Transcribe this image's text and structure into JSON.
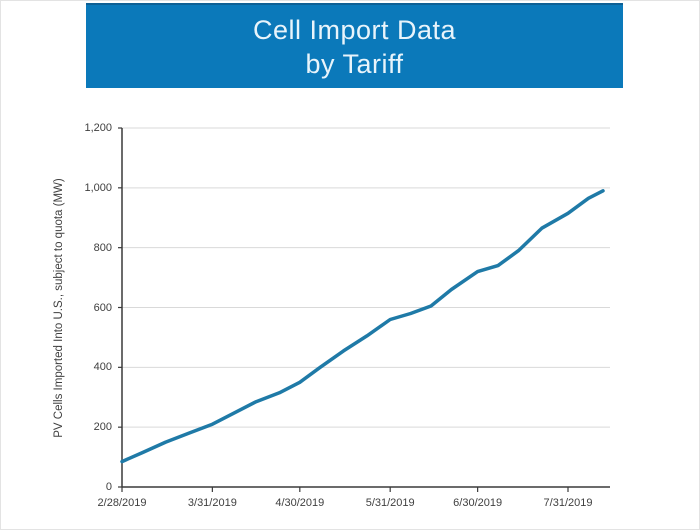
{
  "banner": {
    "title_line1": "Cell Import Data",
    "title_line2": "by Tariff"
  },
  "colors": {
    "banner_bg": "#0b79ba",
    "banner_text": "#e8f4fb",
    "line": "#1f7aa7",
    "axis_line": "#3a3a3a",
    "gridline": "#d9d9d9",
    "tick_text": "#404040"
  },
  "chart_data": {
    "type": "line",
    "title": "Cell Import Data by Tariff",
    "xlabel": "",
    "ylabel": "PV Cells Imported Into U.S., subject to quota (MW)",
    "ylim": [
      0,
      1200
    ],
    "y_tick_interval": 200,
    "y_tick_labels": [
      "0",
      "200",
      "400",
      "600",
      "800",
      "1,000",
      "1,200"
    ],
    "y_tick_values": [
      0,
      200,
      400,
      600,
      800,
      1000,
      1200
    ],
    "x_tick_labels": [
      "2/28/2019",
      "3/31/2019",
      "4/30/2019",
      "5/31/2019",
      "6/30/2019",
      "7/31/2019"
    ],
    "grid": "horizontal",
    "legend": "none",
    "series": [
      {
        "name": "PV cells imported, subject to quota (MW)",
        "points": [
          {
            "date": "2/28/2019",
            "mw": 85
          },
          {
            "date": "3/7/2019",
            "mw": 115
          },
          {
            "date": "3/15/2019",
            "mw": 150
          },
          {
            "date": "3/23/2019",
            "mw": 180
          },
          {
            "date": "3/31/2019",
            "mw": 210
          },
          {
            "date": "4/7/2019",
            "mw": 245
          },
          {
            "date": "4/15/2019",
            "mw": 285
          },
          {
            "date": "4/23/2019",
            "mw": 315
          },
          {
            "date": "4/30/2019",
            "mw": 350
          },
          {
            "date": "5/7/2019",
            "mw": 400
          },
          {
            "date": "5/15/2019",
            "mw": 455
          },
          {
            "date": "5/23/2019",
            "mw": 505
          },
          {
            "date": "5/31/2019",
            "mw": 560
          },
          {
            "date": "6/7/2019",
            "mw": 580
          },
          {
            "date": "6/14/2019",
            "mw": 605
          },
          {
            "date": "6/21/2019",
            "mw": 660
          },
          {
            "date": "6/30/2019",
            "mw": 720
          },
          {
            "date": "7/7/2019",
            "mw": 740
          },
          {
            "date": "7/14/2019",
            "mw": 790
          },
          {
            "date": "7/22/2019",
            "mw": 865
          },
          {
            "date": "7/31/2019",
            "mw": 915
          },
          {
            "date": "8/7/2019",
            "mw": 965
          },
          {
            "date": "8/12/2019",
            "mw": 990
          }
        ]
      }
    ]
  }
}
